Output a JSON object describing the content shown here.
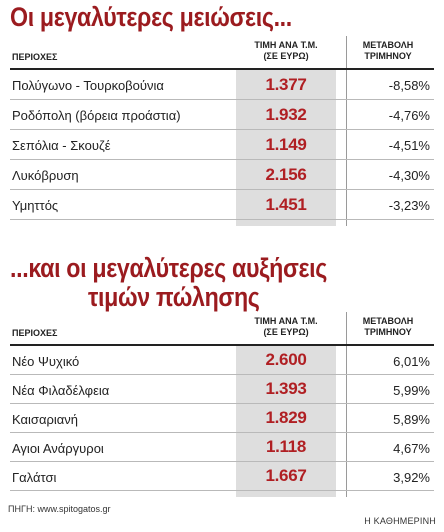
{
  "chart_data": [
    {
      "type": "table",
      "title": "Οι μεγαλύτερες μειώσεις...",
      "columns": [
        "ΠΕΡΙΟΧΕΣ",
        "ΤΙΜΗ ΑΝΑ Τ.Μ. (ΣΕ ΕΥΡΩ)",
        "ΜΕΤΑΒΟΛΗ ΤΡΙΜΗΝΟΥ"
      ],
      "header": {
        "area": "ΠΕΡΙΟΧΕΣ",
        "price_line1": "ΤΙΜΗ ΑΝΑ Τ.Μ.",
        "price_line2": "(ΣΕ ΕΥΡΩ)",
        "change_line1": "ΜΕΤΑΒΟΛΗ",
        "change_line2": "ΤΡΙΜΗΝΟΥ"
      },
      "rows": [
        {
          "area": "Πολύγωνο - Τουρκοβούνια",
          "price": "1.377",
          "change": "-8,58%"
        },
        {
          "area": "Ροδόπολη (βόρεια προάστια)",
          "price": "1.932",
          "change": "-4,76%"
        },
        {
          "area": "Σεπόλια - Σκουζέ",
          "price": "1.149",
          "change": "-4,51%"
        },
        {
          "area": "Λυκόβρυση",
          "price": "2.156",
          "change": "-4,30%"
        },
        {
          "area": "Υμηττός",
          "price": "1.451",
          "change": "-3,23%"
        }
      ]
    },
    {
      "type": "table",
      "title_line1": "...και οι μεγαλύτερες αυξήσεις",
      "title_line2": "τιμών πώλησης",
      "columns": [
        "ΠΕΡΙΟΧΕΣ",
        "ΤΙΜΗ ΑΝΑ Τ.Μ. (ΣΕ ΕΥΡΩ)",
        "ΜΕΤΑΒΟΛΗ ΤΡΙΜΗΝΟΥ"
      ],
      "header": {
        "area": "ΠΕΡΙΟΧΕΣ",
        "price_line1": "ΤΙΜΗ ΑΝΑ Τ.Μ.",
        "price_line2": "(ΣΕ ΕΥΡΩ)",
        "change_line1": "ΜΕΤΑΒΟΛΗ",
        "change_line2": "ΤΡΙΜΗΝΟΥ"
      },
      "rows": [
        {
          "area": "Νέο Ψυχικό",
          "price": "2.600",
          "change": "6,01%"
        },
        {
          "area": "Νέα Φιλαδέλφεια",
          "price": "1.393",
          "change": "5,99%"
        },
        {
          "area": "Καισαριανή",
          "price": "1.829",
          "change": "5,89%"
        },
        {
          "area": "Αγιοι Ανάργυροι",
          "price": "1.118",
          "change": "4,67%"
        },
        {
          "area": "Γαλάτσι",
          "price": "1.667",
          "change": "3,92%"
        }
      ]
    }
  ],
  "colors": {
    "title": "#9b1b1f",
    "price": "#b01f23",
    "shade": "#dedede"
  },
  "footer": {
    "source": "ΠΗΓΗ: www.spitogatos.gr",
    "credit": "Η ΚΑΘΗΜΕΡΙΝΗ"
  }
}
